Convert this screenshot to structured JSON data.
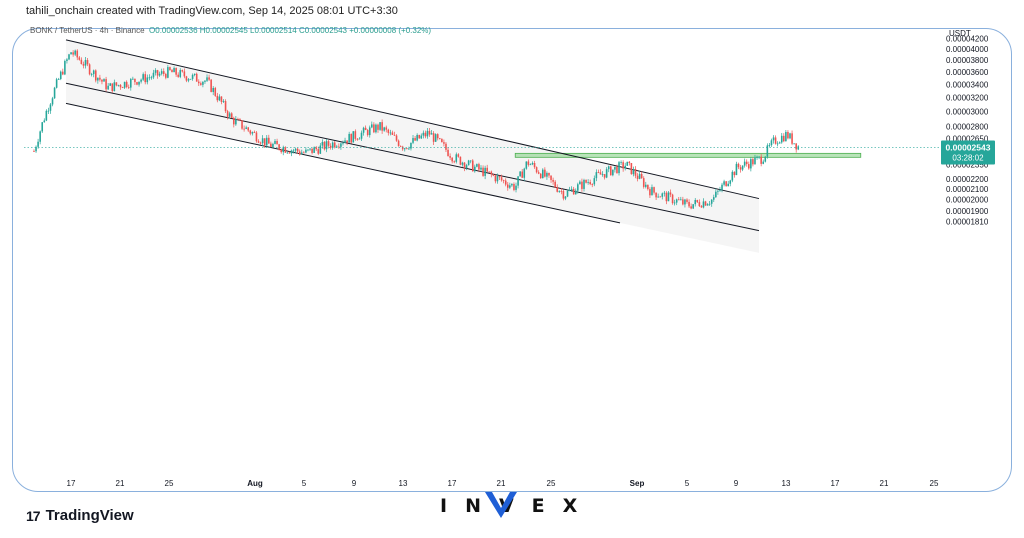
{
  "header": {
    "text": "tahili_onchain created with TradingView.com, Sep 14, 2025 08:01 UTC+3:30"
  },
  "legend": {
    "symbol": "BONK / TetherUS · 4h · Binance",
    "ohlc": "O0.00002536 H0.00002545 L0.00002514 C0.00002543 +0.00000008 (+0.32%)"
  },
  "axis": {
    "currency": "USDT",
    "price_label": "0.00002543",
    "countdown": "03:28:02"
  },
  "brand": {
    "logo": "17",
    "name": "TradingView"
  },
  "watermark": {
    "text": "INVEX"
  },
  "colors": {
    "up": "#26a69a",
    "down": "#ef5350",
    "channel": "#131722",
    "zone": "#7fce7f",
    "price": "#26a69a",
    "frame": "#8ab0dd"
  },
  "chart_data": {
    "type": "candlestick",
    "symbol": "BONK / TetherUS",
    "interval": "4h",
    "exchange": "Binance",
    "y_scale": "log",
    "y_ticks": [
      "0.00004200",
      "0.00004000",
      "0.00003800",
      "0.00003600",
      "0.00003400",
      "0.00003200",
      "0.00003000",
      "0.00002800",
      "0.00002650",
      "0.00002350",
      "0.00002200",
      "0.00002100",
      "0.00002000",
      "0.00001900",
      "0.00001810"
    ],
    "x_ticks": [
      "17",
      "21",
      "25",
      "Aug",
      "5",
      "9",
      "13",
      "17",
      "21",
      "25",
      "Sep",
      "5",
      "9",
      "13",
      "17",
      "21",
      "25"
    ],
    "last_price": 2.543e-05,
    "price_path_approx": [
      {
        "date": "2025-07-14",
        "price": 2.5e-05
      },
      {
        "date": "2025-07-15",
        "price": 3e-05
      },
      {
        "date": "2025-07-17",
        "price": 3.95e-05
      },
      {
        "date": "2025-07-20",
        "price": 3.35e-05
      },
      {
        "date": "2025-07-25",
        "price": 3.6e-05
      },
      {
        "date": "2025-07-28",
        "price": 3.45e-05
      },
      {
        "date": "2025-07-30",
        "price": 2.9e-05
      },
      {
        "date": "2025-08-02",
        "price": 2.58e-05
      },
      {
        "date": "2025-08-05",
        "price": 2.48e-05
      },
      {
        "date": "2025-08-09",
        "price": 2.68e-05
      },
      {
        "date": "2025-08-11",
        "price": 2.8e-05
      },
      {
        "date": "2025-08-13",
        "price": 2.55e-05
      },
      {
        "date": "2025-08-15",
        "price": 2.72e-05
      },
      {
        "date": "2025-08-17",
        "price": 2.43e-05
      },
      {
        "date": "2025-08-19",
        "price": 2.3e-05
      },
      {
        "date": "2025-08-22",
        "price": 2.12e-05
      },
      {
        "date": "2025-08-23",
        "price": 2.38e-05
      },
      {
        "date": "2025-08-26",
        "price": 2.05e-05
      },
      {
        "date": "2025-08-29",
        "price": 2.25e-05
      },
      {
        "date": "2025-08-31",
        "price": 2.35e-05
      },
      {
        "date": "2025-09-02",
        "price": 2.08e-05
      },
      {
        "date": "2025-09-05",
        "price": 1.95e-05
      },
      {
        "date": "2025-09-07",
        "price": 2e-05
      },
      {
        "date": "2025-09-09",
        "price": 2.32e-05
      },
      {
        "date": "2025-09-11",
        "price": 2.42e-05
      },
      {
        "date": "2025-09-12",
        "price": 2.62e-05
      },
      {
        "date": "2025-09-13",
        "price": 2.7e-05
      },
      {
        "date": "2025-09-14",
        "price": 2.543e-05
      }
    ],
    "channel": {
      "upper": [
        {
          "date": "2025-07-17",
          "price": 4.15e-05
        },
        {
          "date": "2025-09-10",
          "price": 2.03e-05
        }
      ],
      "middle": [
        {
          "date": "2025-07-17",
          "price": 3.4e-05
        },
        {
          "date": "2025-09-10",
          "price": 1.75e-05
        }
      ],
      "lower": [
        {
          "date": "2025-07-17",
          "price": 3.1e-05
        },
        {
          "date": "2025-09-10",
          "price": 1.58e-05
        }
      ]
    },
    "zone": {
      "start": "2025-08-22",
      "end": "2025-09-19",
      "low": 2.43e-05,
      "high": 2.475e-05
    }
  }
}
